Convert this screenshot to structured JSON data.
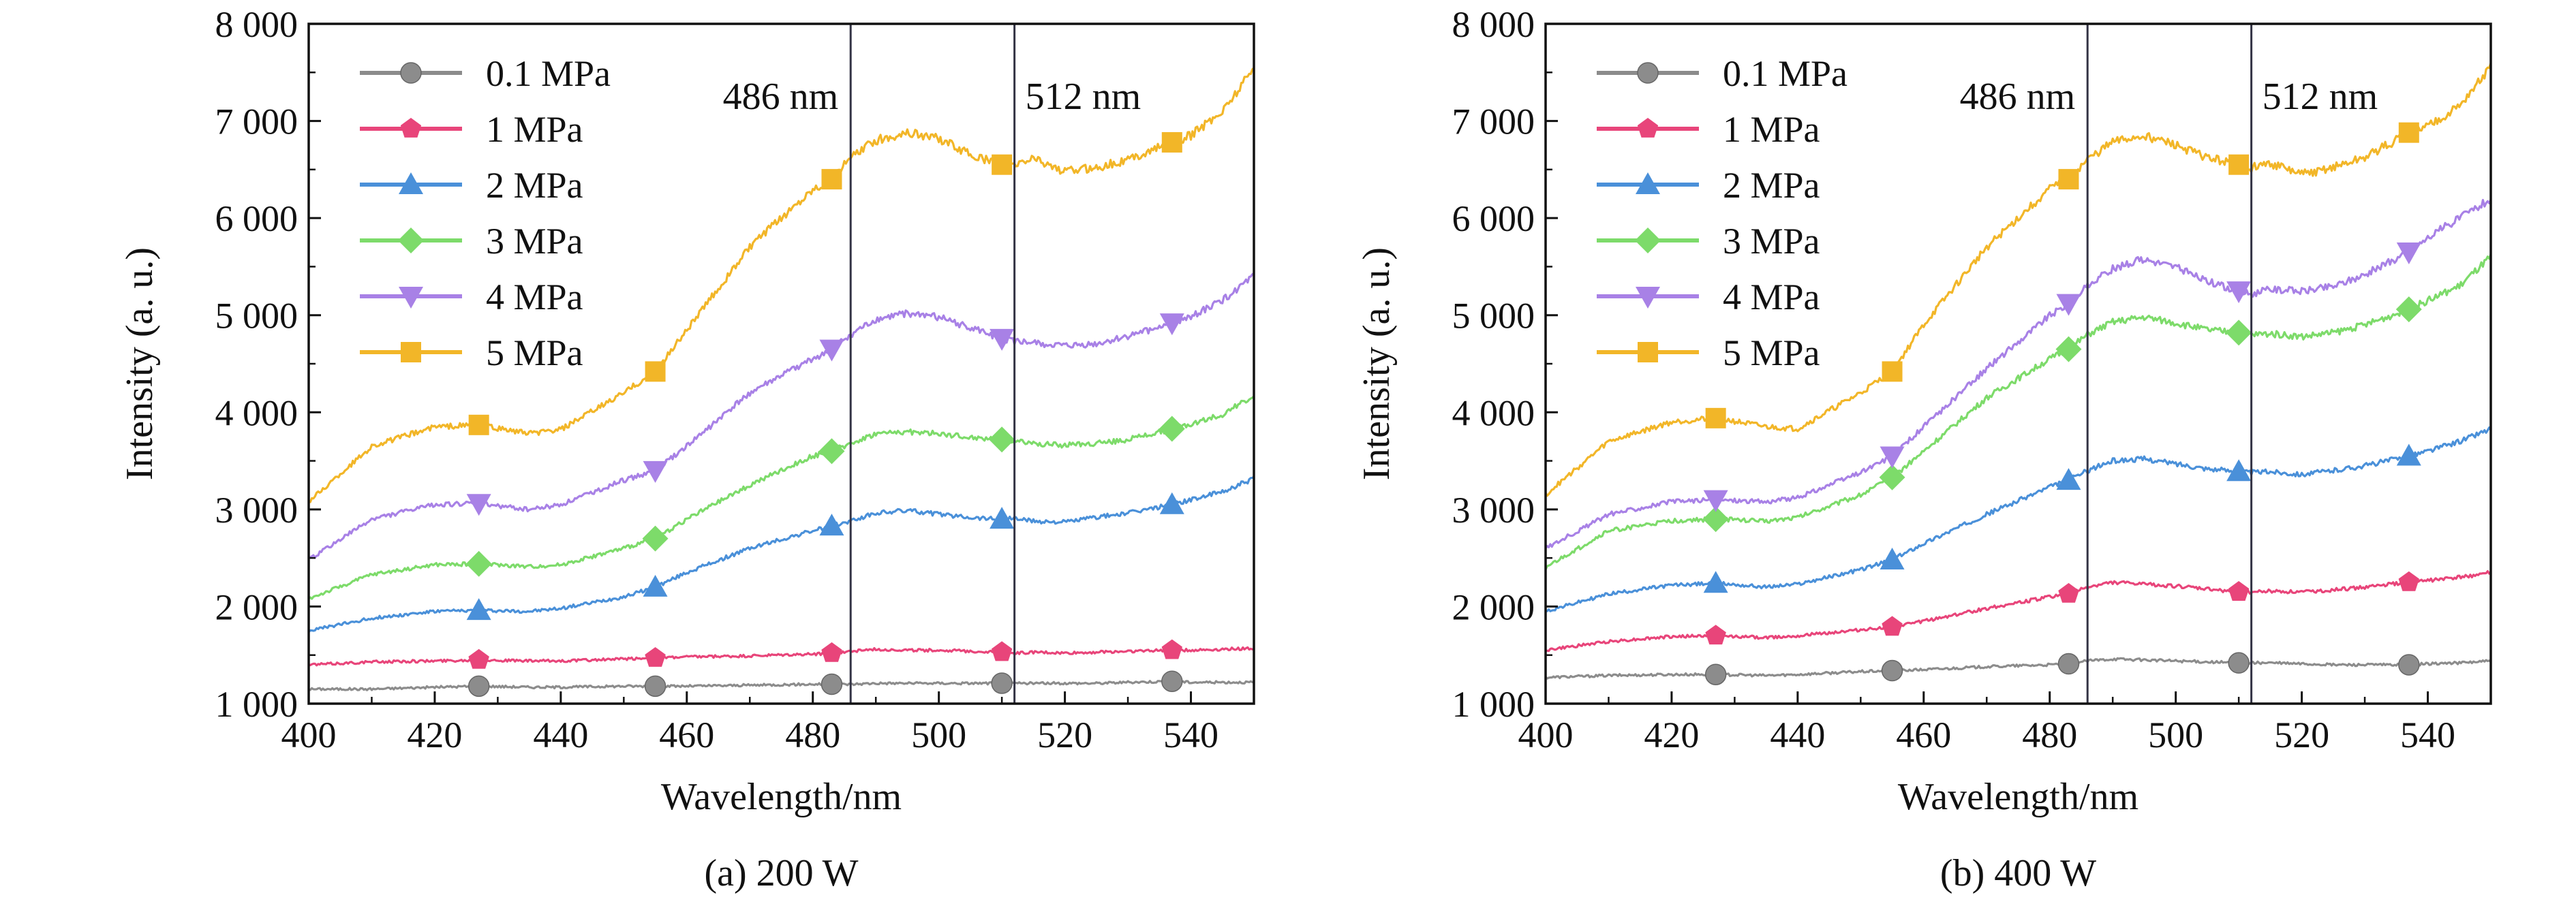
{
  "chart_data": [
    {
      "type": "line",
      "caption": "(a) 200 W",
      "xlabel": "Wavelength/nm",
      "ylabel": "Intensity (a. u.)",
      "xlim": [
        400,
        550
      ],
      "ylim": [
        1000,
        8000
      ],
      "xticks": [
        400,
        420,
        440,
        460,
        480,
        500,
        520,
        540
      ],
      "yticks": [
        1000,
        2000,
        3000,
        4000,
        5000,
        6000,
        7000,
        8000
      ],
      "xtick_labels": [
        "400",
        "420",
        "440",
        "460",
        "480",
        "500",
        "520",
        "540"
      ],
      "ytick_labels": [
        "1 000",
        "2 000",
        "3 000",
        "4 000",
        "5 000",
        "6 000",
        "7 000",
        "8 000"
      ],
      "grid": false,
      "legend_position": "top-left",
      "reference_lines": [
        {
          "x": 486,
          "label": "486 nm"
        },
        {
          "x": 512,
          "label": "512 nm"
        }
      ],
      "x": [
        400,
        410,
        420,
        427,
        435,
        440,
        450,
        455,
        460,
        470,
        480,
        483,
        486,
        490,
        495,
        500,
        505,
        510,
        512,
        515,
        520,
        525,
        530,
        537,
        540,
        545,
        550
      ],
      "series": [
        {
          "name": "0.1 MPa",
          "color": "#8c8c8c",
          "marker": "circle",
          "marker_x": [
            427,
            455,
            483,
            510,
            537
          ],
          "values": [
            1150,
            1150,
            1170,
            1180,
            1170,
            1170,
            1180,
            1180,
            1180,
            1190,
            1200,
            1200,
            1200,
            1210,
            1210,
            1210,
            1210,
            1210,
            1210,
            1210,
            1210,
            1210,
            1220,
            1230,
            1220,
            1220,
            1220
          ]
        },
        {
          "name": "1 MPa",
          "color": "#e8457a",
          "marker": "pentagon",
          "marker_x": [
            427,
            455,
            483,
            510,
            537
          ],
          "values": [
            1400,
            1430,
            1440,
            1450,
            1440,
            1440,
            1460,
            1470,
            1480,
            1490,
            1510,
            1520,
            1540,
            1560,
            1550,
            1550,
            1540,
            1530,
            1520,
            1530,
            1520,
            1530,
            1540,
            1550,
            1550,
            1560,
            1570
          ]
        },
        {
          "name": "2 MPa",
          "color": "#4a90d9",
          "marker": "triangle-up",
          "marker_x": [
            427,
            455,
            483,
            510,
            537
          ],
          "values": [
            1750,
            1880,
            1950,
            1960,
            1950,
            1980,
            2100,
            2200,
            2350,
            2600,
            2780,
            2830,
            2880,
            2960,
            2990,
            2950,
            2920,
            2900,
            2910,
            2880,
            2870,
            2920,
            2960,
            3050,
            3100,
            3180,
            3320
          ]
        },
        {
          "name": "3 MPa",
          "color": "#7ddb6a",
          "marker": "diamond",
          "marker_x": [
            427,
            455,
            483,
            510,
            537
          ],
          "values": [
            2080,
            2330,
            2430,
            2440,
            2410,
            2430,
            2600,
            2700,
            2900,
            3250,
            3550,
            3600,
            3680,
            3780,
            3800,
            3780,
            3740,
            3720,
            3710,
            3680,
            3660,
            3680,
            3720,
            3830,
            3880,
            3980,
            4170
          ]
        },
        {
          "name": "4 MPa",
          "color": "#a881e6",
          "marker": "triangle-down",
          "marker_x": [
            427,
            455,
            483,
            510,
            537
          ],
          "values": [
            2480,
            2900,
            3050,
            3060,
            3000,
            3050,
            3300,
            3400,
            3650,
            4200,
            4550,
            4650,
            4800,
            4950,
            5020,
            4980,
            4870,
            4760,
            4730,
            4710,
            4680,
            4700,
            4780,
            4920,
            4990,
            5150,
            5400
          ]
        },
        {
          "name": "5 MPa",
          "color": "#f2b628",
          "marker": "square",
          "marker_x": [
            427,
            455,
            483,
            510,
            537
          ],
          "values": [
            3080,
            3650,
            3850,
            3870,
            3780,
            3820,
            4200,
            4420,
            4850,
            5700,
            6300,
            6400,
            6620,
            6800,
            6880,
            6820,
            6650,
            6550,
            6540,
            6620,
            6480,
            6520,
            6600,
            6780,
            6850,
            7100,
            7550
          ]
        }
      ]
    },
    {
      "type": "line",
      "caption": "(b) 400 W",
      "xlabel": "Wavelength/nm",
      "ylabel": "Intensity (a. u.)",
      "xlim": [
        400,
        550
      ],
      "ylim": [
        1000,
        8000
      ],
      "xticks": [
        400,
        420,
        440,
        460,
        480,
        500,
        520,
        540
      ],
      "yticks": [
        1000,
        2000,
        3000,
        4000,
        5000,
        6000,
        7000,
        8000
      ],
      "xtick_labels": [
        "400",
        "420",
        "440",
        "460",
        "480",
        "500",
        "520",
        "540"
      ],
      "ytick_labels": [
        "1 000",
        "2 000",
        "3 000",
        "4 000",
        "5 000",
        "6 000",
        "7 000",
        "8 000"
      ],
      "grid": false,
      "legend_position": "top-left",
      "reference_lines": [
        {
          "x": 486,
          "label": "486 nm"
        },
        {
          "x": 512,
          "label": "512 nm"
        }
      ],
      "x": [
        400,
        410,
        420,
        427,
        435,
        440,
        450,
        455,
        460,
        470,
        480,
        483,
        486,
        490,
        495,
        500,
        505,
        510,
        512,
        515,
        520,
        525,
        530,
        537,
        540,
        545,
        550
      ],
      "series": [
        {
          "name": "0.1 MPa",
          "color": "#8c8c8c",
          "marker": "circle",
          "marker_x": [
            427,
            455,
            483,
            510,
            537
          ],
          "values": [
            1270,
            1290,
            1300,
            1300,
            1290,
            1300,
            1330,
            1340,
            1350,
            1380,
            1400,
            1410,
            1440,
            1460,
            1450,
            1440,
            1430,
            1420,
            1420,
            1420,
            1410,
            1400,
            1400,
            1400,
            1410,
            1420,
            1440
          ]
        },
        {
          "name": "1 MPa",
          "color": "#e8457a",
          "marker": "pentagon",
          "marker_x": [
            427,
            455,
            483,
            510,
            537
          ],
          "values": [
            1550,
            1640,
            1690,
            1700,
            1680,
            1700,
            1760,
            1790,
            1850,
            1980,
            2100,
            2130,
            2200,
            2250,
            2230,
            2210,
            2180,
            2150,
            2150,
            2160,
            2150,
            2170,
            2200,
            2250,
            2270,
            2300,
            2350
          ]
        },
        {
          "name": "2 MPa",
          "color": "#4a90d9",
          "marker": "triangle-up",
          "marker_x": [
            427,
            455,
            483,
            510,
            537
          ],
          "values": [
            1950,
            2130,
            2220,
            2240,
            2200,
            2230,
            2380,
            2480,
            2650,
            2950,
            3230,
            3300,
            3400,
            3500,
            3520,
            3470,
            3420,
            3390,
            3380,
            3390,
            3360,
            3400,
            3450,
            3550,
            3600,
            3700,
            3830
          ]
        },
        {
          "name": "3 MPa",
          "color": "#7ddb6a",
          "marker": "diamond",
          "marker_x": [
            427,
            455,
            483,
            510,
            537
          ],
          "values": [
            2400,
            2780,
            2880,
            2900,
            2880,
            2920,
            3150,
            3330,
            3600,
            4150,
            4550,
            4650,
            4800,
            4930,
            4980,
            4920,
            4850,
            4820,
            4800,
            4810,
            4780,
            4820,
            4900,
            5060,
            5150,
            5300,
            5600
          ]
        },
        {
          "name": "4 MPa",
          "color": "#a881e6",
          "marker": "triangle-down",
          "marker_x": [
            427,
            455,
            483,
            510,
            537
          ],
          "values": [
            2600,
            2950,
            3080,
            3100,
            3080,
            3120,
            3380,
            3550,
            3850,
            4450,
            5000,
            5120,
            5300,
            5480,
            5580,
            5500,
            5350,
            5250,
            5220,
            5270,
            5250,
            5300,
            5420,
            5650,
            5800,
            6000,
            6200
          ]
        },
        {
          "name": "5 MPa",
          "color": "#f2b628",
          "marker": "square",
          "marker_x": [
            427,
            455,
            483,
            510,
            537
          ],
          "values": [
            3150,
            3700,
            3900,
            3940,
            3850,
            3830,
            4200,
            4420,
            4900,
            5700,
            6300,
            6400,
            6600,
            6780,
            6850,
            6750,
            6620,
            6550,
            6520,
            6560,
            6450,
            6520,
            6620,
            6880,
            6950,
            7150,
            7550
          ]
        }
      ]
    }
  ]
}
